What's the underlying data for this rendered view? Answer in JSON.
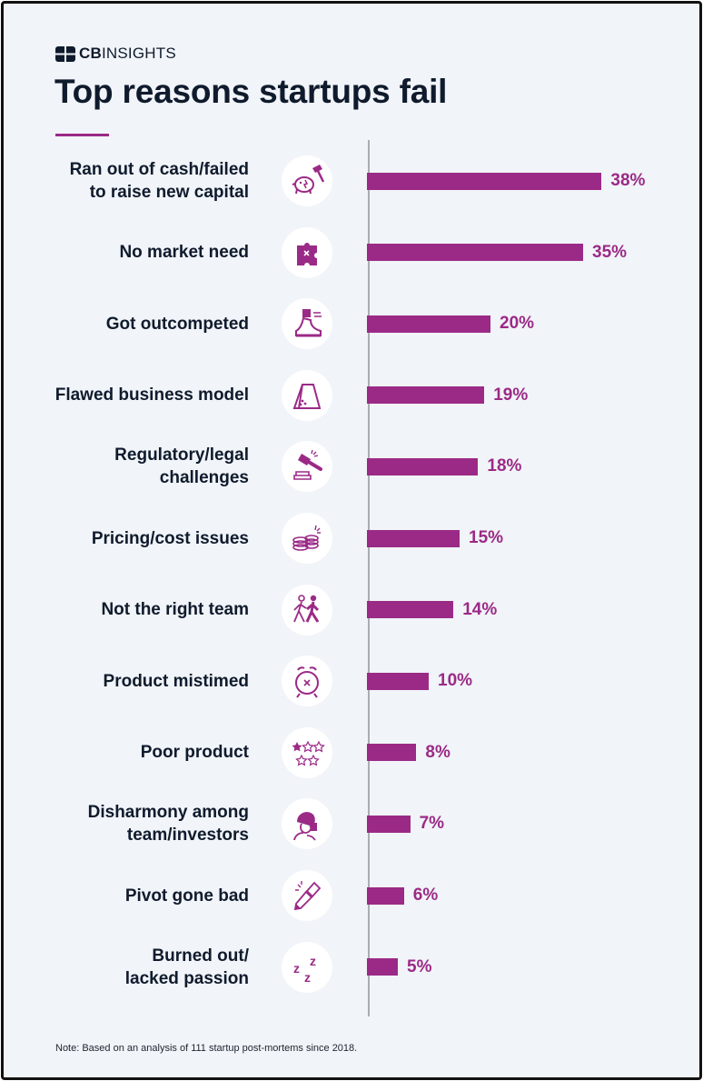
{
  "brand": {
    "logo_bold": "CB",
    "logo_rest": "INSIGHTS"
  },
  "title": "Top reasons startups fail",
  "note": "Note: Based on an analysis of 111 startup post-mortems since 2018.",
  "colors": {
    "bar": "#9b2a87",
    "value_text": "#9b2a87",
    "label_text": "#0f1b2d",
    "background": "#f1f4f8"
  },
  "chart_data": {
    "type": "bar",
    "orientation": "horizontal",
    "title": "Top reasons startups fail",
    "xlabel": "",
    "ylabel": "",
    "value_unit": "%",
    "xlim": [
      0,
      38
    ],
    "grid": false,
    "categories": [
      "Ran out of cash/failed\nto raise new capital",
      "No market need",
      "Got outcompeted",
      "Flawed business model",
      "Regulatory/legal\nchallenges",
      "Pricing/cost issues",
      "Not the right team",
      "Product mistimed",
      "Poor product",
      "Disharmony among\nteam/investors",
      "Pivot gone bad",
      "Burned out/\nlacked passion"
    ],
    "values": [
      38,
      35,
      20,
      19,
      18,
      15,
      14,
      10,
      8,
      7,
      6,
      5
    ],
    "value_labels": [
      "38%",
      "35%",
      "20%",
      "19%",
      "18%",
      "15%",
      "14%",
      "10%",
      "8%",
      "7%",
      "6%",
      "5%"
    ],
    "icons": [
      "piggy-bank-hammer-icon",
      "puzzle-piece-icon",
      "running-shoe-icon",
      "house-of-cards-icon",
      "gavel-icon",
      "coin-stack-icon",
      "walking-people-icon",
      "alarm-clock-icon",
      "rating-stars-icon",
      "frustrated-person-icon",
      "broken-pencil-icon",
      "sleep-zzz-icon"
    ]
  }
}
